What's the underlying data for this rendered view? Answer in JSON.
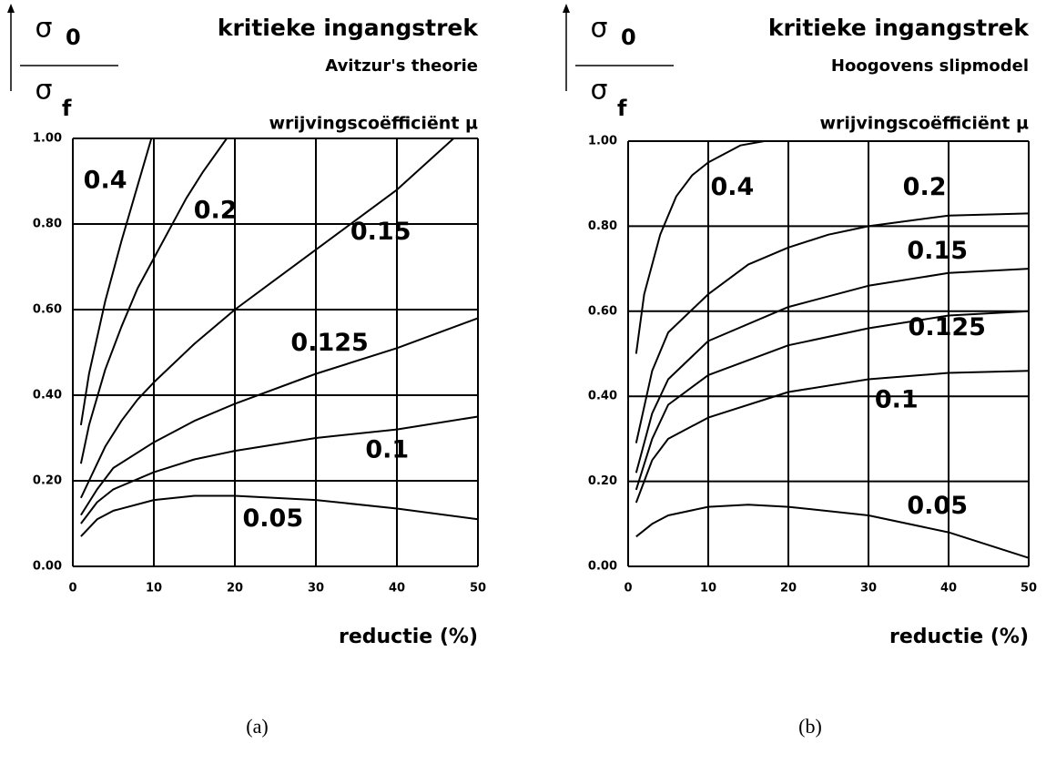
{
  "chart_data": [
    {
      "type": "line",
      "title": "kritieke ingangstrek",
      "subtitle": "Avitzur's theorie",
      "ylabel_numerator": {
        "symbol": "σ",
        "sub": "0"
      },
      "ylabel_denominator": {
        "symbol": "σ",
        "sub": "f"
      },
      "legend_title": "wrijvingscoëfficiënt µ",
      "xlabel": "reductie (%)",
      "caption": "(a)",
      "xlim": [
        0,
        50
      ],
      "ylim": [
        0,
        1
      ],
      "xticks": [
        0,
        10,
        20,
        30,
        40,
        50
      ],
      "yticks": [
        {
          "value": 0,
          "label": "0.00"
        },
        {
          "value": 0.2,
          "label": "0.20"
        },
        {
          "value": 0.4,
          "label": "0.40"
        },
        {
          "value": 0.6,
          "label": "0.60"
        },
        {
          "value": 0.8,
          "label": "0.80"
        },
        {
          "value": 1,
          "label": "1.00"
        }
      ],
      "grid": true,
      "series": [
        {
          "name": "0.4",
          "color": "#000000",
          "x": [
            1,
            2,
            4,
            6,
            8,
            9.7
          ],
          "values": [
            0.33,
            0.45,
            0.62,
            0.76,
            0.89,
            1.0
          ]
        },
        {
          "name": "0.2",
          "color": "#000000",
          "x": [
            1,
            2,
            4,
            6,
            8,
            10,
            12,
            14,
            16,
            19
          ],
          "values": [
            0.24,
            0.33,
            0.46,
            0.56,
            0.65,
            0.72,
            0.79,
            0.86,
            0.92,
            1.0
          ]
        },
        {
          "name": "0.15",
          "color": "#000000",
          "x": [
            1,
            2,
            4,
            6,
            8,
            10,
            15,
            20,
            25,
            30,
            35,
            40,
            47
          ],
          "values": [
            0.16,
            0.2,
            0.28,
            0.34,
            0.39,
            0.43,
            0.52,
            0.6,
            0.67,
            0.74,
            0.81,
            0.88,
            1.0
          ]
        },
        {
          "name": "0.125",
          "color": "#000000",
          "x": [
            1,
            3,
            5,
            10,
            15,
            20,
            30,
            40,
            50
          ],
          "values": [
            0.12,
            0.18,
            0.23,
            0.29,
            0.34,
            0.38,
            0.45,
            0.51,
            0.58
          ]
        },
        {
          "name": "0.1",
          "color": "#000000",
          "x": [
            1,
            3,
            5,
            10,
            15,
            20,
            30,
            40,
            50
          ],
          "values": [
            0.1,
            0.15,
            0.18,
            0.22,
            0.25,
            0.27,
            0.3,
            0.32,
            0.35
          ]
        },
        {
          "name": "0.05",
          "color": "#000000",
          "x": [
            1,
            3,
            5,
            10,
            15,
            20,
            30,
            40,
            50
          ],
          "values": [
            0.07,
            0.11,
            0.13,
            0.155,
            0.165,
            0.165,
            0.155,
            0.135,
            0.11
          ]
        }
      ]
    },
    {
      "type": "line",
      "title": "kritieke ingangstrek",
      "subtitle": "Hoogovens slipmodel",
      "ylabel_numerator": {
        "symbol": "σ",
        "sub": "0"
      },
      "ylabel_denominator": {
        "symbol": "σ",
        "sub": "f"
      },
      "legend_title": "wrijvingscoëfficiënt µ",
      "xlabel": "reductie (%)",
      "caption": "(b)",
      "xlim": [
        0,
        50
      ],
      "ylim": [
        0,
        1
      ],
      "xticks": [
        0,
        10,
        20,
        30,
        40,
        50
      ],
      "yticks": [
        {
          "value": 0,
          "label": "0.00"
        },
        {
          "value": 0.2,
          "label": "0.20"
        },
        {
          "value": 0.4,
          "label": "0.40"
        },
        {
          "value": 0.6,
          "label": "0.60"
        },
        {
          "value": 0.8,
          "label": "0.80"
        },
        {
          "value": 1,
          "label": "1.00"
        }
      ],
      "grid": true,
      "series": [
        {
          "name": "0.4",
          "color": "#000000",
          "x": [
            1,
            2,
            4,
            6,
            8,
            10,
            14,
            17
          ],
          "values": [
            0.5,
            0.64,
            0.78,
            0.87,
            0.92,
            0.95,
            0.99,
            1.0
          ]
        },
        {
          "name": "0.2",
          "color": "#000000",
          "x": [
            1,
            3,
            5,
            10,
            15,
            20,
            25,
            30,
            40,
            50
          ],
          "values": [
            0.29,
            0.46,
            0.55,
            0.64,
            0.71,
            0.75,
            0.78,
            0.8,
            0.825,
            0.83
          ]
        },
        {
          "name": "0.15",
          "color": "#000000",
          "x": [
            1,
            3,
            5,
            10,
            20,
            30,
            40,
            50
          ],
          "values": [
            0.22,
            0.36,
            0.44,
            0.53,
            0.61,
            0.66,
            0.69,
            0.7
          ]
        },
        {
          "name": "0.125",
          "color": "#000000",
          "x": [
            1,
            3,
            5,
            10,
            20,
            30,
            40,
            50
          ],
          "values": [
            0.18,
            0.3,
            0.38,
            0.45,
            0.52,
            0.56,
            0.59,
            0.6
          ]
        },
        {
          "name": "0.1",
          "color": "#000000",
          "x": [
            1,
            3,
            5,
            10,
            20,
            30,
            40,
            50
          ],
          "values": [
            0.15,
            0.25,
            0.3,
            0.35,
            0.41,
            0.44,
            0.455,
            0.46
          ]
        },
        {
          "name": "0.05",
          "color": "#000000",
          "x": [
            1,
            3,
            5,
            10,
            15,
            20,
            30,
            40,
            50
          ],
          "values": [
            0.07,
            0.1,
            0.12,
            0.14,
            0.145,
            0.14,
            0.12,
            0.08,
            0.02
          ]
        }
      ]
    }
  ]
}
